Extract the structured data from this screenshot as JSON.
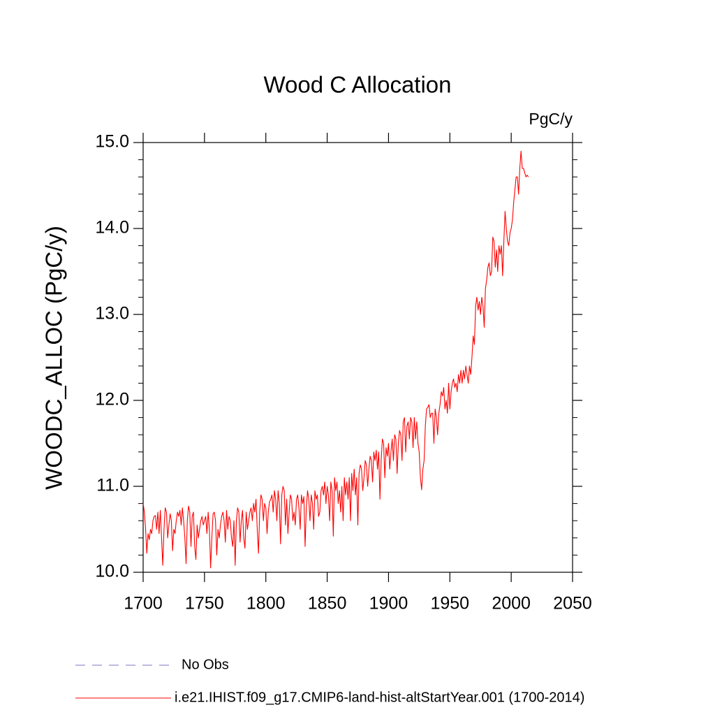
{
  "chart_data": {
    "type": "line",
    "title": "Wood C Allocation",
    "unit_label": "PgC/y",
    "y_label": "WOODC_ALLOC  (PgC/y)",
    "xlim": [
      1700,
      2050
    ],
    "xticks": [
      1700,
      1750,
      1800,
      1850,
      1900,
      1950,
      2000,
      2050
    ],
    "ylim": [
      10,
      15
    ],
    "yticks": [
      {
        "value": 10,
        "label": "10.0"
      },
      {
        "value": 11,
        "label": "11.0"
      },
      {
        "value": 12,
        "label": "12.0"
      },
      {
        "value": 13,
        "label": "13.0"
      },
      {
        "value": 14,
        "label": "14.0"
      },
      {
        "value": 15,
        "label": "15.0"
      }
    ],
    "yminor_ticks": [
      10.2,
      10.4,
      10.6,
      10.8,
      11.2,
      11.4,
      11.6,
      11.8,
      12.2,
      12.4,
      12.6,
      12.8,
      13.2,
      13.4,
      13.6,
      13.8,
      14.2,
      14.4,
      14.6,
      14.8
    ],
    "x": [
      1700,
      1701,
      1702,
      1703,
      1704,
      1705,
      1706,
      1707,
      1708,
      1709,
      1710,
      1711,
      1712,
      1713,
      1714,
      1715,
      1716,
      1717,
      1718,
      1719,
      1720,
      1721,
      1722,
      1723,
      1724,
      1725,
      1726,
      1727,
      1728,
      1729,
      1730,
      1731,
      1732,
      1733,
      1734,
      1735,
      1736,
      1737,
      1738,
      1739,
      1740,
      1741,
      1742,
      1743,
      1744,
      1745,
      1746,
      1747,
      1748,
      1749,
      1750,
      1751,
      1752,
      1753,
      1754,
      1755,
      1756,
      1757,
      1758,
      1759,
      1760,
      1761,
      1762,
      1763,
      1764,
      1765,
      1766,
      1767,
      1768,
      1769,
      1770,
      1771,
      1772,
      1773,
      1774,
      1775,
      1776,
      1777,
      1778,
      1779,
      1780,
      1781,
      1782,
      1783,
      1784,
      1785,
      1786,
      1787,
      1788,
      1789,
      1790,
      1791,
      1792,
      1793,
      1794,
      1795,
      1796,
      1797,
      1798,
      1799,
      1800,
      1801,
      1802,
      1803,
      1804,
      1805,
      1806,
      1807,
      1808,
      1809,
      1810,
      1811,
      1812,
      1813,
      1814,
      1815,
      1816,
      1817,
      1818,
      1819,
      1820,
      1821,
      1822,
      1823,
      1824,
      1825,
      1826,
      1827,
      1828,
      1829,
      1830,
      1831,
      1832,
      1833,
      1834,
      1835,
      1836,
      1837,
      1838,
      1839,
      1840,
      1841,
      1842,
      1843,
      1844,
      1845,
      1846,
      1847,
      1848,
      1849,
      1850,
      1851,
      1852,
      1853,
      1854,
      1855,
      1856,
      1857,
      1858,
      1859,
      1860,
      1861,
      1862,
      1863,
      1864,
      1865,
      1866,
      1867,
      1868,
      1869,
      1870,
      1871,
      1872,
      1873,
      1874,
      1875,
      1876,
      1877,
      1878,
      1879,
      1880,
      1881,
      1882,
      1883,
      1884,
      1885,
      1886,
      1887,
      1888,
      1889,
      1890,
      1891,
      1892,
      1893,
      1894,
      1895,
      1896,
      1897,
      1898,
      1899,
      1900,
      1901,
      1902,
      1903,
      1904,
      1905,
      1906,
      1907,
      1908,
      1909,
      1910,
      1911,
      1912,
      1913,
      1914,
      1915,
      1916,
      1917,
      1918,
      1919,
      1920,
      1921,
      1922,
      1923,
      1924,
      1925,
      1926,
      1927,
      1928,
      1929,
      1930,
      1931,
      1932,
      1933,
      1934,
      1935,
      1936,
      1937,
      1938,
      1939,
      1940,
      1941,
      1942,
      1943,
      1944,
      1945,
      1946,
      1947,
      1948,
      1949,
      1950,
      1951,
      1952,
      1953,
      1954,
      1955,
      1956,
      1957,
      1958,
      1959,
      1960,
      1961,
      1962,
      1963,
      1964,
      1965,
      1966,
      1967,
      1968,
      1969,
      1970,
      1971,
      1972,
      1973,
      1974,
      1975,
      1976,
      1977,
      1978,
      1979,
      1980,
      1981,
      1982,
      1983,
      1984,
      1985,
      1986,
      1987,
      1988,
      1989,
      1990,
      1991,
      1992,
      1993,
      1994,
      1995,
      1996,
      1997,
      1998,
      1999,
      2000,
      2001,
      2002,
      2003,
      2004,
      2005,
      2006,
      2007,
      2008,
      2009,
      2010,
      2011,
      2012,
      2013,
      2014
    ],
    "series": [
      {
        "name": "No Obs",
        "color": "#8070c0",
        "dashed": true,
        "values": null
      },
      {
        "name": "i.e21.IHIST.f09_g17.CMIP6-land-hist-altStartYear.001 (1700-2014)",
        "color": "#ff0000",
        "dashed": false,
        "values": [
          10.8,
          10.7,
          10.5,
          10.22,
          10.45,
          10.38,
          10.5,
          10.45,
          10.6,
          10.65,
          10.66,
          10.5,
          10.7,
          10.45,
          10.72,
          10.4,
          10.08,
          10.5,
          10.75,
          10.7,
          10.4,
          10.55,
          10.68,
          10.6,
          10.25,
          10.5,
          10.45,
          10.6,
          10.7,
          10.65,
          10.72,
          10.55,
          10.75,
          10.6,
          10.4,
          10.1,
          10.6,
          10.77,
          10.7,
          10.3,
          10.65,
          10.7,
          10.3,
          10.15,
          10.55,
          10.4,
          10.5,
          10.6,
          10.65,
          10.55,
          10.6,
          10.65,
          10.45,
          10.7,
          10.5,
          10.05,
          10.4,
          10.68,
          10.7,
          10.6,
          10.2,
          10.5,
          10.4,
          10.55,
          10.65,
          10.7,
          10.6,
          10.35,
          10.72,
          10.5,
          10.65,
          10.6,
          10.4,
          10.3,
          10.6,
          10.08,
          10.6,
          10.75,
          10.7,
          10.35,
          10.6,
          10.72,
          10.4,
          10.28,
          10.7,
          10.5,
          10.6,
          10.7,
          10.75,
          10.6,
          10.8,
          10.7,
          10.85,
          10.5,
          10.22,
          10.7,
          10.9,
          10.85,
          10.6,
          10.8,
          10.75,
          10.45,
          10.7,
          10.82,
          10.85,
          10.9,
          10.7,
          10.95,
          10.85,
          10.6,
          10.95,
          10.8,
          10.33,
          10.9,
          11.0,
          10.95,
          10.55,
          10.85,
          10.45,
          10.7,
          10.9,
          10.85,
          10.6,
          10.7,
          10.55,
          10.85,
          10.9,
          10.75,
          10.5,
          10.9,
          10.8,
          10.88,
          10.3,
          10.75,
          10.95,
          10.85,
          10.6,
          10.9,
          10.8,
          10.5,
          10.95,
          10.85,
          10.9,
          10.65,
          10.7,
          10.95,
          11.0,
          10.9,
          11.05,
          10.8,
          11.0,
          10.9,
          10.6,
          11.05,
          10.95,
          10.42,
          11.1,
          10.95,
          11.05,
          10.8,
          10.95,
          10.7,
          11.0,
          10.6,
          11.1,
          10.9,
          11.05,
          10.85,
          11.1,
          10.6,
          11.15,
          10.95,
          11.2,
          10.9,
          11.1,
          10.55,
          11.15,
          11.25,
          11.2,
          10.95,
          11.1,
          11.3,
          11.25,
          11.0,
          11.2,
          11.35,
          11.3,
          11.05,
          11.4,
          11.3,
          11.42,
          11.2,
          11.4,
          10.85,
          11.3,
          11.55,
          11.5,
          11.1,
          11.45,
          11.35,
          11.5,
          11.2,
          11.4,
          11.55,
          11.3,
          11.6,
          11.55,
          11.15,
          11.5,
          11.65,
          11.6,
          11.3,
          11.75,
          11.8,
          11.4,
          11.7,
          11.75,
          11.55,
          11.8,
          11.75,
          11.45,
          11.8,
          11.55,
          11.75,
          11.5,
          11.4,
          11.1,
          10.96,
          11.2,
          11.3,
          11.7,
          11.9,
          11.92,
          11.95,
          11.8,
          11.85,
          11.85,
          11.5,
          11.9,
          11.8,
          11.6,
          11.85,
          11.95,
          12.1,
          12.05,
          12.15,
          11.9,
          12.0,
          11.85,
          12.2,
          11.9,
          12.1,
          12.2,
          12.25,
          12.15,
          12.2,
          12.1,
          12.3,
          12.2,
          12.35,
          12.2,
          12.35,
          12.25,
          12.4,
          12.3,
          12.2,
          12.4,
          12.3,
          12.5,
          12.75,
          12.65,
          13.1,
          13.2,
          13.05,
          13.15,
          13.0,
          13.2,
          13.1,
          12.85,
          13.3,
          13.4,
          13.55,
          13.6,
          13.45,
          13.5,
          13.9,
          13.85,
          13.55,
          13.75,
          13.5,
          13.8,
          13.7,
          13.8,
          13.45,
          13.85,
          14.2,
          14.0,
          13.85,
          13.8,
          13.95,
          14.0,
          14.1,
          14.3,
          14.45,
          14.6,
          14.6,
          14.4,
          14.7,
          14.9,
          14.7,
          14.7,
          14.65,
          14.6,
          14.62,
          14.6
        ]
      }
    ]
  }
}
